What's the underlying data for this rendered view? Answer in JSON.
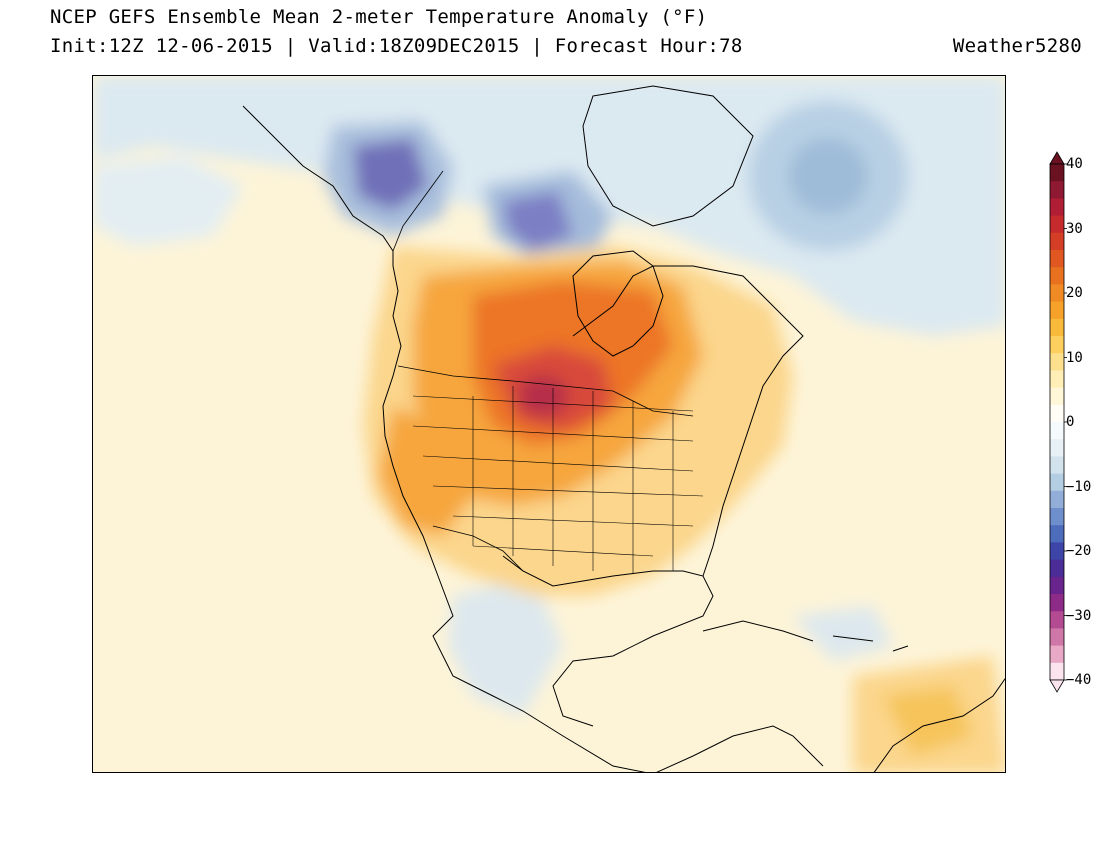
{
  "header": {
    "title": "NCEP GEFS Ensemble Mean 2-meter Temperature Anomaly (°F)",
    "subtitle": "Init:12Z 12-06-2015 | Valid:18Z09DEC2015 | Forecast Hour:78",
    "credit": "Weather5280"
  },
  "colorbar": {
    "ticks": [
      "40",
      "30",
      "20",
      "10",
      "0",
      "−10",
      "−20",
      "−30",
      "−40"
    ],
    "colors": [
      "#fbe4ee",
      "#e8a8c6",
      "#cf78a8",
      "#b34a92",
      "#8e2a88",
      "#6a248e",
      "#4a2d96",
      "#3d45a8",
      "#4e6cbc",
      "#6f8fcc",
      "#92aed8",
      "#b3cde3",
      "#d2e3ee",
      "#e8f1f6",
      "#f5fafc",
      "#fffdf6",
      "#fff7d8",
      "#ffeeb6",
      "#fde08e",
      "#fccf5e",
      "#f9b93a",
      "#f6a22a",
      "#f08a24",
      "#e8711f",
      "#e05722",
      "#d43d26",
      "#c52a2c",
      "#b01e36",
      "#8f1832",
      "#6a1222"
    ]
  },
  "map": {
    "colors": {
      "land_warm": "#fbd68c",
      "warm": "#f6a63c",
      "hot": "#ec7428",
      "hottest": "#d8483a",
      "peak": "#b52e48",
      "ocean_neutral": "#fdf4d8",
      "cool": "#d9e9f2",
      "cold": "#a9c4de",
      "colder": "#7c88c6",
      "coldest": "#5a4ea6"
    }
  }
}
